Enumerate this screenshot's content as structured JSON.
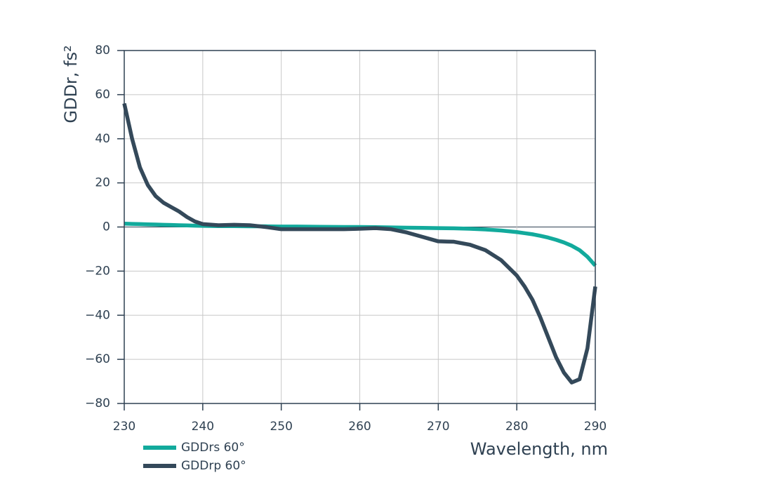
{
  "chart_data": {
    "type": "line",
    "xlabel": "Wavelength, nm",
    "ylabel": "GDDr, fs²",
    "x": [
      230,
      231,
      232,
      233,
      234,
      235,
      236,
      237,
      238,
      239,
      240,
      242,
      244,
      246,
      248,
      250,
      252,
      255,
      258,
      260,
      262,
      264,
      266,
      268,
      270,
      272,
      274,
      276,
      278,
      280,
      281,
      282,
      283,
      284,
      285,
      286,
      287,
      288,
      289,
      290
    ],
    "series": [
      {
        "name": "GDDrs 60°",
        "color": "#12aa9c",
        "values": [
          1.5,
          1.4,
          1.3,
          1.2,
          1.1,
          1.0,
          0.9,
          0.8,
          0.7,
          0.6,
          0.5,
          0.4,
          0.4,
          0.3,
          0.3,
          0.2,
          0.2,
          0.1,
          0,
          0,
          -0.1,
          -0.2,
          -0.3,
          -0.4,
          -0.5,
          -0.6,
          -0.8,
          -1.1,
          -1.6,
          -2.3,
          -2.8,
          -3.3,
          -4,
          -4.8,
          -5.8,
          -7,
          -8.5,
          -10.5,
          -13.5,
          -17.5
        ]
      },
      {
        "name": "GDDrp 60°",
        "color": "#34495a",
        "values": [
          56,
          40,
          27,
          19,
          14,
          11,
          9,
          7,
          4.5,
          2.5,
          1.3,
          0.8,
          1,
          0.8,
          0,
          -1,
          -1,
          -1,
          -1,
          -0.8,
          -0.5,
          -1,
          -2.5,
          -4.5,
          -6.5,
          -6.7,
          -8,
          -10.5,
          -15,
          -22,
          -27,
          -33,
          -41,
          -50,
          -59,
          -66,
          -70.5,
          -69,
          -55,
          -27
        ]
      }
    ],
    "xlim": [
      230,
      290
    ],
    "xticks": [
      230,
      240,
      250,
      260,
      270,
      280,
      290
    ],
    "ylim": [
      -80,
      80
    ],
    "yticks": [
      {
        "value": -80,
        "label": "−80"
      },
      {
        "value": -60,
        "label": "−60"
      },
      {
        "value": -40,
        "label": "−40"
      },
      {
        "value": -20,
        "label": "−20"
      },
      0,
      20,
      40,
      60,
      80
    ],
    "grid": true
  }
}
